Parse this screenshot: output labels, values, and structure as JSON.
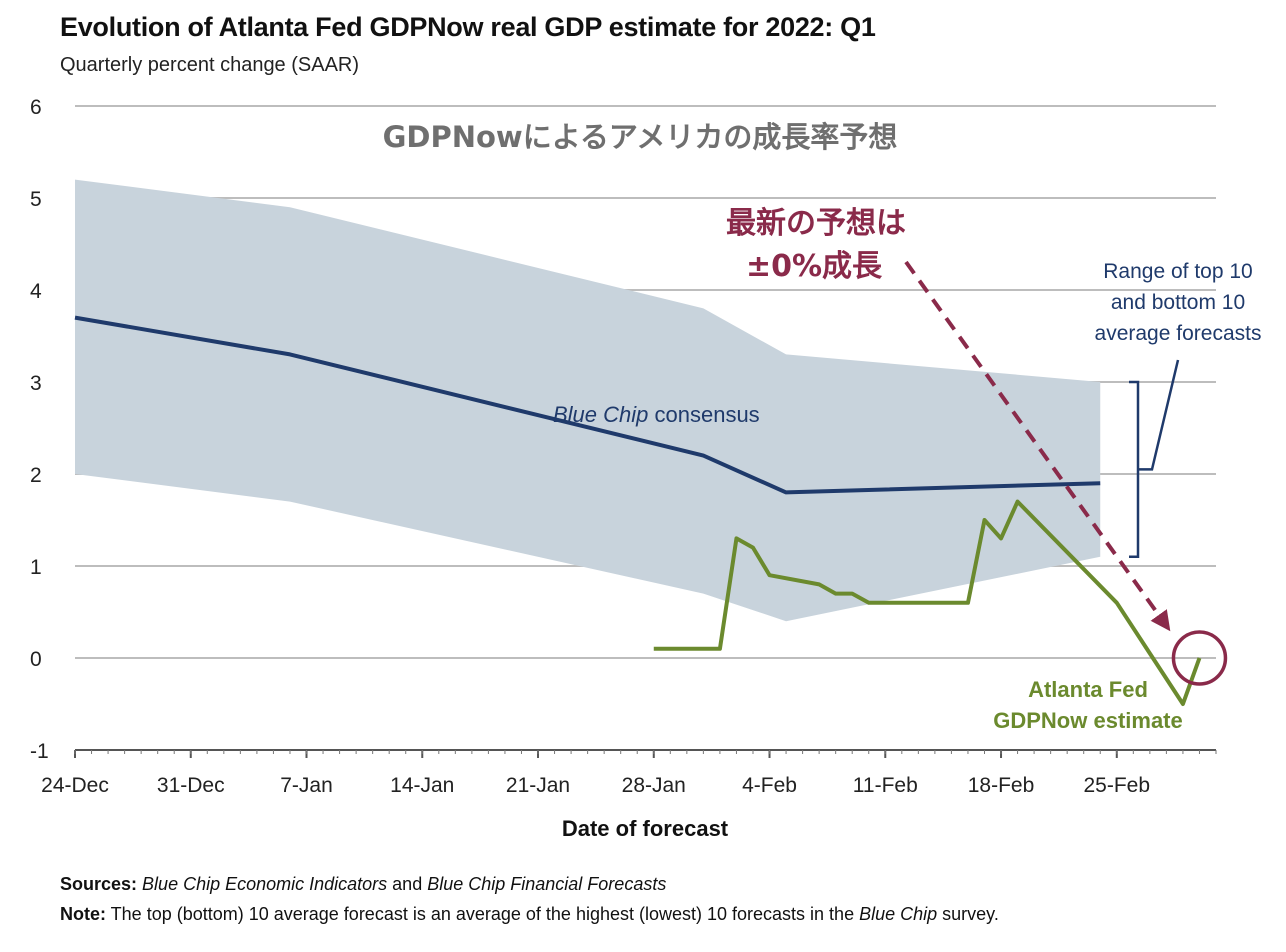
{
  "header": {
    "title": "Evolution of Atlanta Fed GDPNow real GDP estimate for 2022: Q1",
    "subtitle": "Quarterly percent change (SAAR)"
  },
  "chart_data": {
    "type": "line",
    "title": "Evolution of Atlanta Fed GDPNow real GDP estimate for 2022: Q1",
    "subtitle": "Quarterly percent change (SAAR)",
    "xlabel": "Date of forecast",
    "ylabel": "",
    "ylim": [
      -1,
      6
    ],
    "xlim": [
      "2021-12-24",
      "2022-03-03"
    ],
    "yticks": [
      -1,
      0,
      1,
      2,
      3,
      4,
      5,
      6
    ],
    "xticks": [
      {
        "date": "2021-12-24",
        "label": "24-Dec"
      },
      {
        "date": "2021-12-31",
        "label": "31-Dec"
      },
      {
        "date": "2022-01-07",
        "label": "7-Jan"
      },
      {
        "date": "2022-01-14",
        "label": "14-Jan"
      },
      {
        "date": "2022-01-21",
        "label": "21-Jan"
      },
      {
        "date": "2022-01-28",
        "label": "28-Jan"
      },
      {
        "date": "2022-02-04",
        "label": "4-Feb"
      },
      {
        "date": "2022-02-11",
        "label": "11-Feb"
      },
      {
        "date": "2022-02-18",
        "label": "18-Feb"
      },
      {
        "date": "2022-02-25",
        "label": "25-Feb"
      }
    ],
    "grid": "horizontal",
    "overlay_title": "GDPNowによるアメリカの成長率予想",
    "range_band": {
      "label": "Range of top 10 and bottom 10 average forecasts",
      "label_lines": [
        "Range of top 10",
        "and bottom 10",
        "average forecasts"
      ],
      "color": "#c8d3dc",
      "points": [
        {
          "date": "2021-12-24",
          "top": 5.2,
          "bottom": 2.0
        },
        {
          "date": "2022-01-06",
          "top": 4.9,
          "bottom": 1.7
        },
        {
          "date": "2022-01-31",
          "top": 3.8,
          "bottom": 0.7
        },
        {
          "date": "2022-02-05",
          "top": 3.3,
          "bottom": 0.4
        },
        {
          "date": "2022-02-24",
          "top": 3.0,
          "bottom": 1.1
        }
      ]
    },
    "series": [
      {
        "name": "Blue Chip consensus",
        "label_italic": "Blue Chip",
        "label_rest": " consensus",
        "color": "#1f3a6b",
        "points": [
          {
            "date": "2021-12-24",
            "value": 3.7
          },
          {
            "date": "2022-01-06",
            "value": 3.3
          },
          {
            "date": "2022-01-31",
            "value": 2.2
          },
          {
            "date": "2022-02-05",
            "value": 1.8
          },
          {
            "date": "2022-02-24",
            "value": 1.9
          }
        ]
      },
      {
        "name": "Atlanta Fed GDPNow estimate",
        "label_lines": [
          "Atlanta Fed",
          "GDPNow estimate"
        ],
        "color": "#6b8a2e",
        "points": [
          {
            "date": "2022-01-28",
            "value": 0.1
          },
          {
            "date": "2022-02-01",
            "value": 0.1
          },
          {
            "date": "2022-02-02",
            "value": 1.3
          },
          {
            "date": "2022-02-03",
            "value": 1.2
          },
          {
            "date": "2022-02-04",
            "value": 0.9
          },
          {
            "date": "2022-02-07",
            "value": 0.8
          },
          {
            "date": "2022-02-08",
            "value": 0.7
          },
          {
            "date": "2022-02-09",
            "value": 0.7
          },
          {
            "date": "2022-02-10",
            "value": 0.6
          },
          {
            "date": "2022-02-16",
            "value": 0.6
          },
          {
            "date": "2022-02-17",
            "value": 1.5
          },
          {
            "date": "2022-02-18",
            "value": 1.3
          },
          {
            "date": "2022-02-19",
            "value": 1.7
          },
          {
            "date": "2022-02-25",
            "value": 0.6
          },
          {
            "date": "2022-03-01",
            "value": -0.5
          },
          {
            "date": "2022-03-02",
            "value": 0.0
          }
        ]
      }
    ],
    "annotations": [
      {
        "text_lines": [
          "最新の予想は",
          "±0%成長"
        ],
        "color": "#8a2a4a",
        "target": {
          "date": "2022-03-02",
          "value": 0.0
        }
      }
    ]
  },
  "footer": {
    "sources_label": "Sources:",
    "sources_italic1": "Blue Chip Economic Indicators",
    "sources_and": " and ",
    "sources_italic2": "Blue Chip Financial Forecasts",
    "note_label": "Note:",
    "note_text": " The top (bottom) 10 average forecast is an average of the highest (lowest) 10 forecasts in the ",
    "note_italic": "Blue Chip",
    "note_end": " survey."
  }
}
